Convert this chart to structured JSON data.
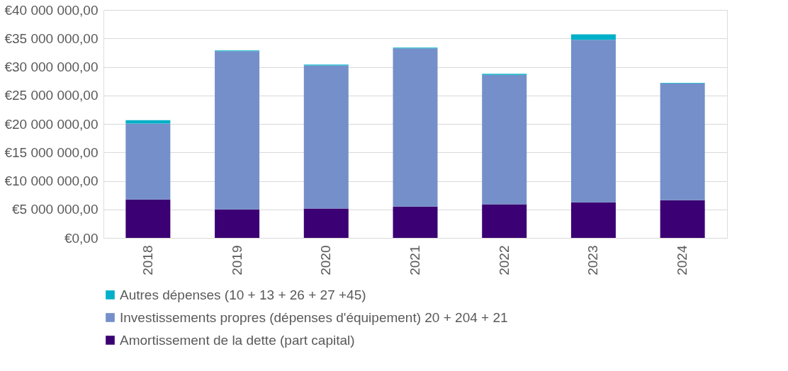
{
  "chart_data": {
    "type": "bar",
    "stacked": true,
    "categories": [
      "2018",
      "2019",
      "2020",
      "2021",
      "2022",
      "2023",
      "2024"
    ],
    "series": [
      {
        "name": "Amortissement de la dette (part capital)",
        "color": "#3b0073",
        "values": [
          6750000,
          5000000,
          5150000,
          5500000,
          5900000,
          6250000,
          6600000
        ]
      },
      {
        "name": "Investissements propres (dépenses d'équipement) 20 + 204 + 21",
        "color": "#748fc9",
        "values": [
          13300000,
          27750000,
          25100000,
          27750000,
          22700000,
          28500000,
          20500000
        ]
      },
      {
        "name": "Autres dépenses (10 + 13 + 26 + 27 +45)",
        "color": "#00b0c8",
        "values": [
          600000,
          150000,
          150000,
          150000,
          200000,
          950000,
          100000
        ]
      }
    ],
    "ylim": [
      0,
      40000000
    ],
    "yticks": [
      {
        "value": 0,
        "label": "€0,00"
      },
      {
        "value": 5000000,
        "label": "€5 000 000,00"
      },
      {
        "value": 10000000,
        "label": "€10 000 000,00"
      },
      {
        "value": 15000000,
        "label": "€15 000 000,00"
      },
      {
        "value": 20000000,
        "label": "€20 000 000,00"
      },
      {
        "value": 25000000,
        "label": "€25 000 000,00"
      },
      {
        "value": 30000000,
        "label": "€30 000 000,00"
      },
      {
        "value": 35000000,
        "label": "€35 000 000,00"
      },
      {
        "value": 40000000,
        "label": "€40 000 000,00"
      }
    ],
    "grid": "y",
    "legend": "bottom"
  }
}
